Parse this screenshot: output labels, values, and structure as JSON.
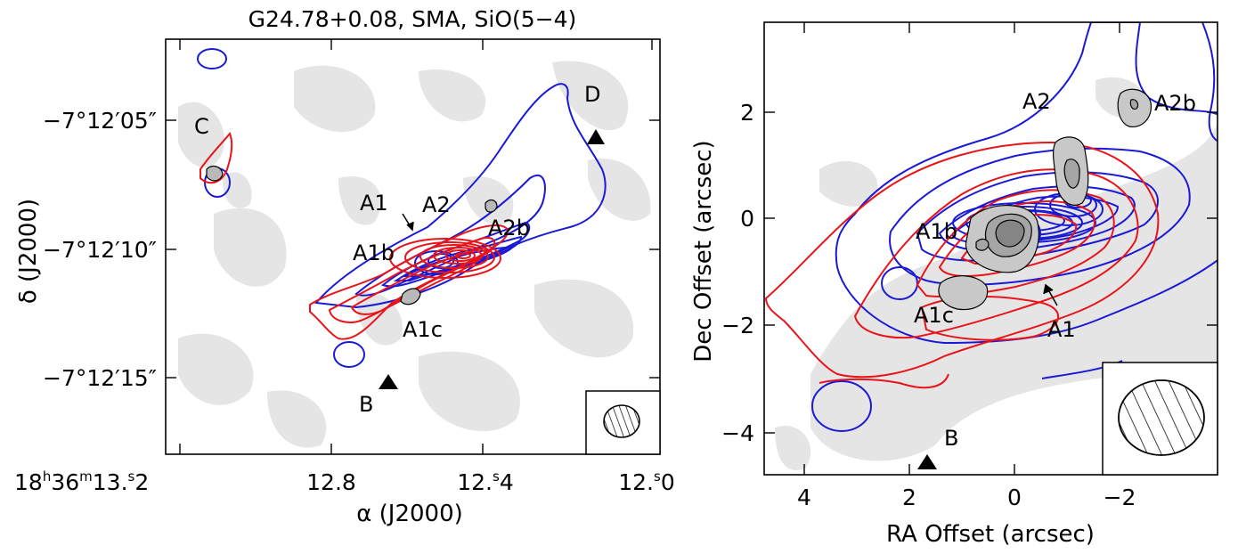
{
  "chart_data": [
    {
      "type": "contour",
      "title": "G24.78+0.08, SMA, SiO(5−4)",
      "xlabel": "α (J2000)",
      "ylabel": "δ (J2000)",
      "x_ticks": [
        {
          "label_main": "18",
          "sup1": "h",
          "mid1": "36",
          "sup2": "m",
          "mid2": "13.",
          "sup3": "s",
          "tail": "2"
        },
        {
          "label": "12.8"
        },
        {
          "label_main": "12.",
          "sup": "s",
          "tail": "4"
        },
        {
          "label_main": "12.",
          "sup": "s",
          "tail": "0"
        }
      ],
      "y_ticks": [
        "−7°12′05″",
        "−7°12′10″",
        "−7°12′15″"
      ],
      "annotations": [
        "C",
        "D",
        "A1",
        "A2",
        "A1b",
        "A2b",
        "A1c",
        "B"
      ],
      "series": [
        {
          "name": "SiO(5−4) redshifted",
          "color": "#e8141a"
        },
        {
          "name": "SiO(5−4) blueshifted",
          "color": "#1a1ad6"
        },
        {
          "name": "continuum",
          "color": "#9a9a9a"
        }
      ],
      "markers": [
        "D",
        "B"
      ],
      "beam_hatched": true
    },
    {
      "type": "contour",
      "xlabel": "RA Offset (arcsec)",
      "ylabel": "Dec Offset (arcsec)",
      "xlim": [
        4.8,
        -3.7
      ],
      "ylim": [
        -4.8,
        3.7
      ],
      "x_ticks": [
        "4",
        "2",
        "0",
        "−2"
      ],
      "y_ticks": [
        "2",
        "0",
        "−2",
        "−4"
      ],
      "annotations": [
        "A2",
        "A2b",
        "A1b",
        "A1c",
        "A1",
        "B"
      ],
      "series": [
        {
          "name": "SiO(5−4) redshifted",
          "color": "#e8141a"
        },
        {
          "name": "SiO(5−4) blueshifted",
          "color": "#1a1ad6"
        },
        {
          "name": "continuum",
          "color": "#9a9a9a"
        }
      ],
      "markers": [
        "B"
      ],
      "beam_hatched": true
    }
  ],
  "colors": {
    "red": "#e8141a",
    "blue": "#1a1ad6",
    "gray": "#e4e4e4",
    "grayDark": "#b3b3b3"
  }
}
